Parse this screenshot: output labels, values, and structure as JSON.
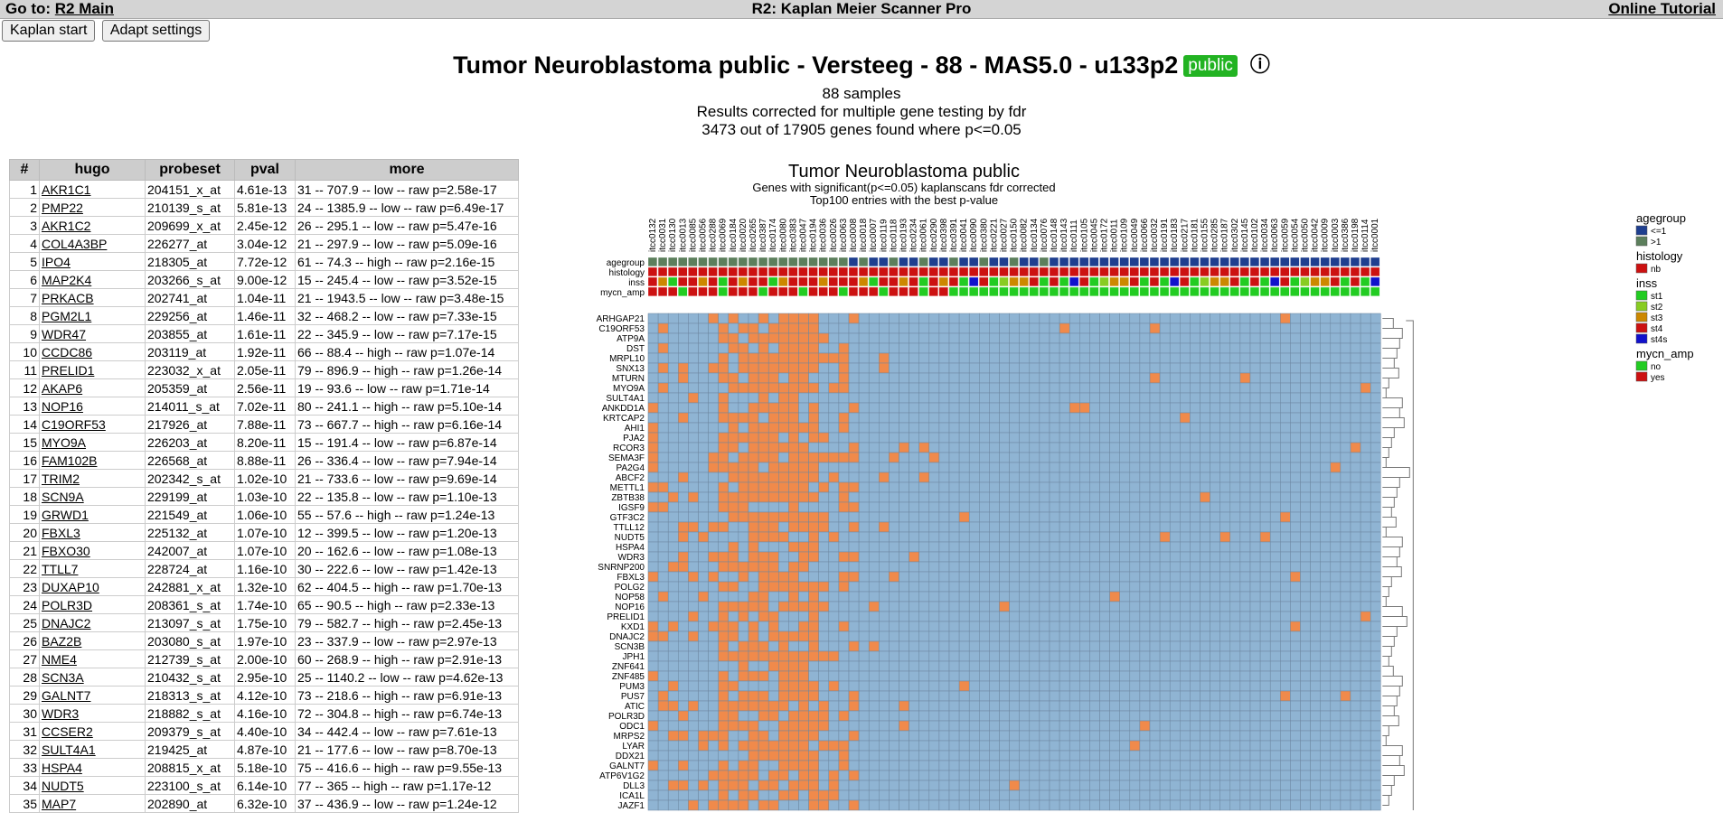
{
  "topbar": {
    "goto_label": "Go to:",
    "goto_link": "R2 Main",
    "title": "R2: Kaplan Meier Scanner Pro",
    "tutorial": "Online Tutorial"
  },
  "buttons": {
    "kaplan_start": "Kaplan start",
    "adapt_settings": "Adapt settings"
  },
  "page": {
    "title": "Tumor Neuroblastoma public - Versteeg - 88 - MAS5.0 - u133p2",
    "badge": "public",
    "info_icon": "info-icon"
  },
  "summary": [
    "88 samples",
    "Results corrected for multiple gene testing by fdr",
    "3473 out of 17905 genes found where p<=0.05"
  ],
  "table": {
    "headers": [
      "#",
      "hugo",
      "probeset",
      "pval",
      "more"
    ],
    "rows": [
      [
        "1",
        "AKR1C1",
        "204151_x_at",
        "4.61e-13",
        "31 -- 707.9 -- low -- raw p=2.58e-17"
      ],
      [
        "2",
        "PMP22",
        "210139_s_at",
        "5.81e-13",
        "24 -- 1385.9 -- low -- raw p=6.49e-17"
      ],
      [
        "3",
        "AKR1C2",
        "209699_x_at",
        "2.45e-12",
        "26 -- 295.1 -- low -- raw p=5.47e-16"
      ],
      [
        "4",
        "COL4A3BP",
        "226277_at",
        "3.04e-12",
        "21 -- 297.9 -- low -- raw p=5.09e-16"
      ],
      [
        "5",
        "IPO4",
        "218305_at",
        "7.72e-12",
        "61 -- 74.3 -- high -- raw p=2.16e-15"
      ],
      [
        "6",
        "MAP2K4",
        "203266_s_at",
        "9.00e-12",
        "15 -- 245.4 -- low -- raw p=3.52e-15"
      ],
      [
        "7",
        "PRKACB",
        "202741_at",
        "1.04e-11",
        "21 -- 1943.5 -- low -- raw p=3.48e-15"
      ],
      [
        "8",
        "PGM2L1",
        "229256_at",
        "1.46e-11",
        "32 -- 468.2 -- low -- raw p=7.33e-15"
      ],
      [
        "9",
        "WDR47",
        "203855_at",
        "1.61e-11",
        "22 -- 345.9 -- low -- raw p=7.17e-15"
      ],
      [
        "10",
        "CCDC86",
        "203119_at",
        "1.92e-11",
        "66 -- 88.4 -- high -- raw p=1.07e-14"
      ],
      [
        "11",
        "PRELID1",
        "223032_x_at",
        "2.05e-11",
        "79 -- 896.9 -- high -- raw p=1.26e-14"
      ],
      [
        "12",
        "AKAP6",
        "205359_at",
        "2.56e-11",
        "19 -- 93.6 -- low -- raw p=1.71e-14"
      ],
      [
        "13",
        "NOP16",
        "214011_s_at",
        "7.02e-11",
        "80 -- 241.1 -- high -- raw p=5.10e-14"
      ],
      [
        "14",
        "C19ORF53",
        "217926_at",
        "7.88e-11",
        "73 -- 667.7 -- high -- raw p=6.16e-14"
      ],
      [
        "15",
        "MYO9A",
        "226203_at",
        "8.20e-11",
        "15 -- 191.4 -- low -- raw p=6.87e-14"
      ],
      [
        "16",
        "FAM102B",
        "226568_at",
        "8.88e-11",
        "26 -- 336.4 -- low -- raw p=7.94e-14"
      ],
      [
        "17",
        "TRIM2",
        "202342_s_at",
        "1.02e-10",
        "21 -- 733.6 -- low -- raw p=9.69e-14"
      ],
      [
        "18",
        "SCN9A",
        "229199_at",
        "1.03e-10",
        "22 -- 135.8 -- low -- raw p=1.10e-13"
      ],
      [
        "19",
        "GRWD1",
        "221549_at",
        "1.06e-10",
        "55 -- 57.6 -- high -- raw p=1.24e-13"
      ],
      [
        "20",
        "FBXL3",
        "225132_at",
        "1.07e-10",
        "12 -- 399.5 -- low -- raw p=1.20e-13"
      ],
      [
        "21",
        "FBXO30",
        "242007_at",
        "1.07e-10",
        "20 -- 162.6 -- low -- raw p=1.08e-13"
      ],
      [
        "22",
        "TTLL7",
        "228724_at",
        "1.16e-10",
        "30 -- 222.6 -- low -- raw p=1.42e-13"
      ],
      [
        "23",
        "DUXAP10",
        "242881_x_at",
        "1.32e-10",
        "62 -- 404.5 -- high -- raw p=1.70e-13"
      ],
      [
        "24",
        "POLR3D",
        "208361_s_at",
        "1.74e-10",
        "65 -- 90.5 -- high -- raw p=2.33e-13"
      ],
      [
        "25",
        "DNAJC2",
        "213097_s_at",
        "1.75e-10",
        "79 -- 582.7 -- high -- raw p=2.45e-13"
      ],
      [
        "26",
        "BAZ2B",
        "203080_s_at",
        "1.97e-10",
        "23 -- 337.9 -- low -- raw p=2.97e-13"
      ],
      [
        "27",
        "NME4",
        "212739_s_at",
        "2.00e-10",
        "60 -- 268.9 -- high -- raw p=2.91e-13"
      ],
      [
        "28",
        "SCN3A",
        "210432_s_at",
        "2.95e-10",
        "25 -- 1140.2 -- low -- raw p=4.62e-13"
      ],
      [
        "29",
        "GALNT7",
        "218313_s_at",
        "4.12e-10",
        "73 -- 218.6 -- high -- raw p=6.91e-13"
      ],
      [
        "30",
        "WDR3",
        "218882_s_at",
        "4.16e-10",
        "72 -- 304.8 -- high -- raw p=6.74e-13"
      ],
      [
        "31",
        "CCSER2",
        "209379_s_at",
        "4.40e-10",
        "34 -- 442.4 -- low -- raw p=7.61e-13"
      ],
      [
        "32",
        "SULT4A1",
        "219425_at",
        "4.87e-10",
        "21 -- 177.6 -- low -- raw p=8.70e-13"
      ],
      [
        "33",
        "HSPA4",
        "208815_x_at",
        "5.18e-10",
        "75 -- 416.6 -- high -- raw p=9.55e-13"
      ],
      [
        "34",
        "NUDT5",
        "223100_s_at",
        "6.14e-10",
        "77 -- 365 -- high -- raw p=1.17e-12"
      ],
      [
        "35",
        "MAP7",
        "202890_at",
        "6.32e-10",
        "37 -- 436.9 -- low -- raw p=1.24e-12"
      ]
    ]
  },
  "heatmap": {
    "title": "Tumor Neuroblastoma public",
    "subtitle1": "Genes with significant(p<=0.05) kaplanscans fdr corrected",
    "subtitle2": "Top100 entries with the best p-value",
    "samples": [
      "itcc0132",
      "itcc0031",
      "itcc0130",
      "itcc0013",
      "itcc0085",
      "itcc0056",
      "itcc0288",
      "itcc0069",
      "itcc0184",
      "itcc0020",
      "itcc0265",
      "itcc0387",
      "itcc0174",
      "itcc0080",
      "itcc0383",
      "itcc0047",
      "itcc0194",
      "itcc0036",
      "itcc0026",
      "itcc0063",
      "itcc0008",
      "itcc0018",
      "itcc0007",
      "itcc0119",
      "itcc0118",
      "itcc0193",
      "itcc0234",
      "itcc0061",
      "itcc0290",
      "itcc0398",
      "itcc0391",
      "itcc0041",
      "itcc0090",
      "itcc0380",
      "itcc0221",
      "itcc0027",
      "itcc0150",
      "itcc0082",
      "itcc0134",
      "itcc0076",
      "itcc0148",
      "itcc0143",
      "itcc0111",
      "itcc0105",
      "itcc0045",
      "itcc0172",
      "itcc0011",
      "itcc0109",
      "itcc0049",
      "itcc0066",
      "itcc0032",
      "itcc0191",
      "itcc0183",
      "itcc0217",
      "itcc0181",
      "itcc0155",
      "itcc0285",
      "itcc0187",
      "itcc0302",
      "itcc0145",
      "itcc0102",
      "itcc0034",
      "itcc0063",
      "itcc0059",
      "itcc0054",
      "itcc0050",
      "itcc0042",
      "itcc0009",
      "itcc0003",
      "itcc0386",
      "itcc0198",
      "itcc0114",
      "itcc0001"
    ],
    "annotation_rows": [
      "agegroup",
      "histology",
      "inss",
      "mycn_amp"
    ],
    "genes": [
      "ARHGAP21",
      "C19ORF53",
      "ATP9A",
      "DST",
      "MRPL10",
      "SNX13",
      "MTURN",
      "MYO9A",
      "SULT4A1",
      "ANKDD1A",
      "KRTCAP2",
      "AHI1",
      "PJA2",
      "RCOR3",
      "SEMA3F",
      "PA2G4",
      "ABCF2",
      "METTL1",
      "ZBTB38",
      "IGSF9",
      "GTF3C2",
      "TTLL12",
      "NUDT5",
      "HSPA4",
      "WDR3",
      "SNRNP200",
      "FBXL3",
      "POLG2",
      "NOP58",
      "NOP16",
      "PRELID1",
      "KXD1",
      "DNAJC2",
      "SCN3B",
      "JPH1",
      "ZNF641",
      "ZNF485",
      "PUM3",
      "PUS7",
      "ATIC",
      "POLR3D",
      "ODC1",
      "MRPS2",
      "LYAR",
      "DDX21",
      "GALNT7",
      "ATP6V1G2",
      "DLL3",
      "ICA1L",
      "JAZF1"
    ],
    "legend": [
      {
        "title": "agegroup",
        "items": [
          {
            "label": "<=1",
            "color": "#1f3f8f"
          },
          {
            "label": ">1",
            "color": "#5c7f5c"
          }
        ]
      },
      {
        "title": "histology",
        "items": [
          {
            "label": "nb",
            "color": "#cc1111"
          }
        ]
      },
      {
        "title": "inss",
        "items": [
          {
            "label": "st1",
            "color": "#22cc22"
          },
          {
            "label": "st2",
            "color": "#88cc22"
          },
          {
            "label": "st3",
            "color": "#cc8800"
          },
          {
            "label": "st4",
            "color": "#cc1111"
          },
          {
            "label": "st4s",
            "color": "#1111cc"
          }
        ]
      },
      {
        "title": "mycn_amp",
        "items": [
          {
            "label": "no",
            "color": "#22cc22"
          },
          {
            "label": "yes",
            "color": "#cc1111"
          }
        ]
      }
    ],
    "colors": {
      "low": "#8fb4d3",
      "high": "#f08a4b",
      "grid": "#6c86a0"
    }
  }
}
